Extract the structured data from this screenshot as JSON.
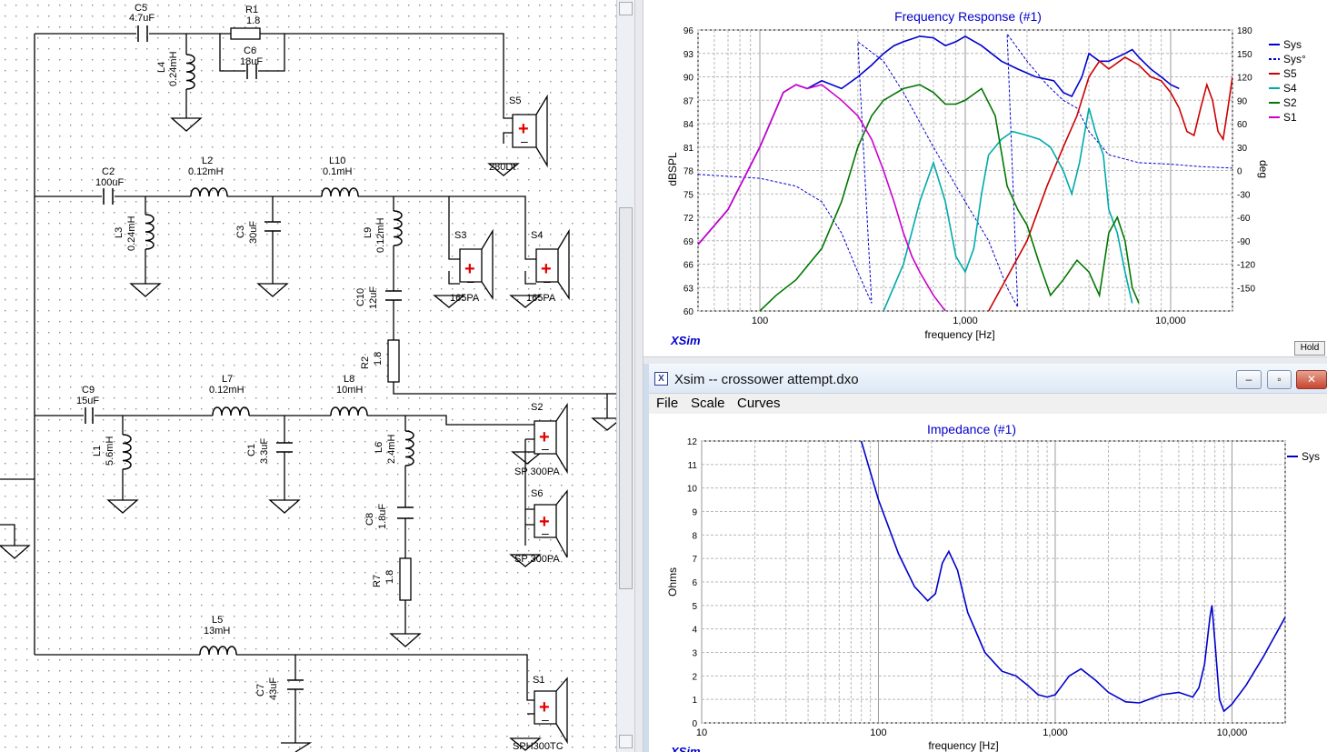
{
  "schematic": {
    "components": {
      "C5": {
        "ref": "C5",
        "value": "4.7uF"
      },
      "R1": {
        "ref": "R1",
        "value": "1.8"
      },
      "C6": {
        "ref": "C6",
        "value": "18uF"
      },
      "L4": {
        "ref": "L4",
        "value": "0.24mH"
      },
      "S5": {
        "ref": "S5",
        "model": "280Dt"
      },
      "C2": {
        "ref": "C2",
        "value": "100uF"
      },
      "L2": {
        "ref": "L2",
        "value": "0.12mH"
      },
      "L10": {
        "ref": "L10",
        "value": "0.1mH"
      },
      "L3": {
        "ref": "L3",
        "value": "0.24mH"
      },
      "C3": {
        "ref": "C3",
        "value": "30uF"
      },
      "L9": {
        "ref": "L9",
        "value": "0.12mH"
      },
      "S3": {
        "ref": "S3",
        "model": "165PA"
      },
      "S4": {
        "ref": "S4",
        "model": "165PA"
      },
      "C10": {
        "ref": "C10",
        "value": "12uF"
      },
      "R2": {
        "ref": "R2",
        "value": "1.8"
      },
      "C9": {
        "ref": "C9",
        "value": "15uF"
      },
      "L7": {
        "ref": "L7",
        "value": "0.12mH"
      },
      "L8": {
        "ref": "L8",
        "value": "10mH"
      },
      "L1": {
        "ref": "L1",
        "value": "5.6mH"
      },
      "C1": {
        "ref": "C1",
        "value": "3.3uF"
      },
      "L6": {
        "ref": "L6",
        "value": "2.4mH"
      },
      "S2": {
        "ref": "S2",
        "model": "SP 300PA"
      },
      "S6": {
        "ref": "S6",
        "model": "SP 300PA"
      },
      "C8": {
        "ref": "C8",
        "value": "1.8uF"
      },
      "R7": {
        "ref": "R7",
        "value": "1.8"
      },
      "L5": {
        "ref": "L5",
        "value": "13mH"
      },
      "C7": {
        "ref": "C7",
        "value": "43uF"
      },
      "S1": {
        "ref": "S1",
        "model": "SPH300TC"
      }
    }
  },
  "frequency_response": {
    "brand": "XSim",
    "hold_label": "Hold",
    "chart_data": {
      "type": "line",
      "title": "Frequency Response (#1)",
      "xlabel": "frequency [Hz]",
      "ylabel": "dBSPL",
      "y2label": "deg",
      "x_scale": "log",
      "xlim": [
        50,
        20000
      ],
      "ylim": [
        60,
        96
      ],
      "y2lim": [
        -180,
        180
      ],
      "x_tick_labels": [
        "100",
        "1,000",
        "10,000"
      ],
      "y_ticks": [
        60,
        63,
        66,
        69,
        72,
        75,
        78,
        81,
        84,
        87,
        90,
        93,
        96
      ],
      "y2_ticks": [
        -150,
        -120,
        -90,
        -60,
        -30,
        0,
        30,
        60,
        90,
        120,
        150,
        180
      ],
      "grid": true,
      "legend_position": "right",
      "series": [
        {
          "name": "Sys",
          "color": "#0000cc",
          "axis": "dB",
          "style": "solid",
          "points": [
            [
              50,
              68.5
            ],
            [
              70,
              73
            ],
            [
              100,
              81
            ],
            [
              130,
              88
            ],
            [
              150,
              89
            ],
            [
              170,
              88.5
            ],
            [
              200,
              89.5
            ],
            [
              250,
              88.5
            ],
            [
              300,
              90
            ],
            [
              350,
              91.5
            ],
            [
              400,
              93
            ],
            [
              450,
              94
            ],
            [
              500,
              94.5
            ],
            [
              600,
              95.2
            ],
            [
              700,
              95
            ],
            [
              800,
              94
            ],
            [
              900,
              94.5
            ],
            [
              1000,
              95.2
            ],
            [
              1200,
              94
            ],
            [
              1500,
              92
            ],
            [
              1800,
              91
            ],
            [
              2200,
              90
            ],
            [
              2700,
              89.5
            ],
            [
              3000,
              88
            ],
            [
              3300,
              87.5
            ],
            [
              3700,
              90
            ],
            [
              4000,
              93
            ],
            [
              4500,
              92
            ],
            [
              5000,
              92
            ],
            [
              6000,
              93
            ],
            [
              6500,
              93.5
            ],
            [
              7000,
              92.5
            ],
            [
              8000,
              91
            ],
            [
              9000,
              90
            ],
            [
              10000,
              89
            ],
            [
              11000,
              88.5
            ]
          ]
        },
        {
          "name": "Sys°",
          "color": "#0000cc",
          "axis": "deg",
          "style": "dashed",
          "points": [
            [
              50,
              -5
            ],
            [
              100,
              -10
            ],
            [
              150,
              -20
            ],
            [
              200,
              -40
            ],
            [
              250,
              -80
            ],
            [
              300,
              -130
            ],
            [
              350,
              -170
            ],
            [
              300,
              165
            ],
            [
              400,
              140
            ],
            [
              500,
              100
            ],
            [
              700,
              30
            ],
            [
              1000,
              -40
            ],
            [
              1300,
              -90
            ],
            [
              1600,
              -150
            ],
            [
              1800,
              -175
            ],
            [
              1600,
              175
            ],
            [
              2000,
              140
            ],
            [
              2500,
              110
            ],
            [
              3000,
              90
            ],
            [
              3500,
              80
            ],
            [
              4000,
              50
            ],
            [
              5000,
              20
            ],
            [
              7000,
              10
            ],
            [
              10000,
              8
            ],
            [
              14000,
              5
            ],
            [
              20000,
              3
            ]
          ]
        },
        {
          "name": "S5",
          "color": "#cc0000",
          "axis": "dB",
          "style": "solid",
          "points": [
            [
              1300,
              60
            ],
            [
              1500,
              63
            ],
            [
              2000,
              69
            ],
            [
              2500,
              76
            ],
            [
              3000,
              81
            ],
            [
              3500,
              85
            ],
            [
              4000,
              90
            ],
            [
              4500,
              92
            ],
            [
              5000,
              91
            ],
            [
              6000,
              92.5
            ],
            [
              7000,
              91.5
            ],
            [
              8000,
              90
            ],
            [
              9000,
              89.5
            ],
            [
              10000,
              88
            ],
            [
              11000,
              86
            ],
            [
              12000,
              83
            ],
            [
              13000,
              82.5
            ],
            [
              14000,
              86
            ],
            [
              15000,
              89
            ],
            [
              16000,
              87
            ],
            [
              17000,
              83
            ],
            [
              18000,
              82
            ],
            [
              19000,
              86
            ],
            [
              20000,
              90
            ]
          ]
        },
        {
          "name": "S4",
          "color": "#00aaaa",
          "axis": "dB",
          "style": "solid",
          "points": [
            [
              400,
              60
            ],
            [
              500,
              66
            ],
            [
              600,
              74
            ],
            [
              700,
              79
            ],
            [
              800,
              74
            ],
            [
              900,
              67
            ],
            [
              1000,
              65
            ],
            [
              1100,
              68
            ],
            [
              1200,
              75
            ],
            [
              1300,
              80
            ],
            [
              1500,
              82
            ],
            [
              1700,
              83
            ],
            [
              2000,
              82.5
            ],
            [
              2300,
              82
            ],
            [
              2600,
              81
            ],
            [
              3000,
              78
            ],
            [
              3300,
              75
            ],
            [
              3600,
              79
            ],
            [
              4000,
              86
            ],
            [
              4300,
              83
            ],
            [
              4700,
              80
            ],
            [
              5000,
              73
            ],
            [
              5500,
              70
            ],
            [
              6000,
              65
            ],
            [
              6500,
              61
            ]
          ]
        },
        {
          "name": "S2",
          "color": "#007700",
          "axis": "dB",
          "style": "solid",
          "points": [
            [
              100,
              60
            ],
            [
              120,
              62
            ],
            [
              150,
              64
            ],
            [
              200,
              68
            ],
            [
              250,
              74
            ],
            [
              300,
              81
            ],
            [
              350,
              85
            ],
            [
              400,
              87
            ],
            [
              500,
              88.5
            ],
            [
              600,
              89
            ],
            [
              700,
              88
            ],
            [
              800,
              86.5
            ],
            [
              900,
              86.5
            ],
            [
              1000,
              87
            ],
            [
              1200,
              88.5
            ],
            [
              1400,
              85
            ],
            [
              1600,
              76
            ],
            [
              1800,
              73
            ],
            [
              2000,
              71
            ],
            [
              2300,
              66
            ],
            [
              2600,
              62
            ],
            [
              3000,
              64
            ],
            [
              3500,
              66.5
            ],
            [
              4000,
              65
            ],
            [
              4500,
              62
            ],
            [
              5000,
              70
            ],
            [
              5500,
              72
            ],
            [
              6000,
              69
            ],
            [
              6500,
              63
            ],
            [
              7000,
              61
            ]
          ]
        },
        {
          "name": "S1",
          "color": "#cc00cc",
          "axis": "dB",
          "style": "solid",
          "points": [
            [
              50,
              68.5
            ],
            [
              70,
              73
            ],
            [
              100,
              81
            ],
            [
              130,
              88
            ],
            [
              150,
              89
            ],
            [
              170,
              88.5
            ],
            [
              200,
              89
            ],
            [
              250,
              87
            ],
            [
              300,
              85
            ],
            [
              350,
              82
            ],
            [
              400,
              78
            ],
            [
              450,
              74
            ],
            [
              500,
              70
            ],
            [
              550,
              67
            ],
            [
              600,
              65
            ],
            [
              700,
              62
            ],
            [
              800,
              60
            ]
          ]
        }
      ]
    }
  },
  "impedance_window": {
    "title": "Xsim -- crossower attempt.dxo",
    "app_icon": "X",
    "menu": [
      "File",
      "Scale",
      "Curves"
    ],
    "brand": "XSim",
    "buttons": {
      "minimize": "‒",
      "maximize": "▫",
      "close": "✕"
    },
    "chart_data": {
      "type": "line",
      "title": "Impedance (#1)",
      "xlabel": "frequency [Hz]",
      "ylabel": "Ohms",
      "x_scale": "log",
      "xlim": [
        10,
        20000
      ],
      "ylim": [
        0,
        12
      ],
      "x_tick_labels": [
        "10",
        "100",
        "1,000",
        "10,000"
      ],
      "y_ticks": [
        0,
        1,
        2,
        3,
        4,
        5,
        6,
        7,
        8,
        9,
        10,
        11,
        12
      ],
      "grid": true,
      "legend_position": "right",
      "series": [
        {
          "name": "Sys",
          "color": "#0000cc",
          "points": [
            [
              80,
              12
            ],
            [
              100,
              9.5
            ],
            [
              130,
              7.2
            ],
            [
              160,
              5.8
            ],
            [
              190,
              5.2
            ],
            [
              210,
              5.5
            ],
            [
              230,
              6.8
            ],
            [
              250,
              7.3
            ],
            [
              280,
              6.5
            ],
            [
              320,
              4.7
            ],
            [
              400,
              3
            ],
            [
              500,
              2.2
            ],
            [
              600,
              2
            ],
            [
              700,
              1.6
            ],
            [
              800,
              1.2
            ],
            [
              900,
              1.1
            ],
            [
              1000,
              1.2
            ],
            [
              1200,
              2
            ],
            [
              1400,
              2.3
            ],
            [
              1700,
              1.8
            ],
            [
              2000,
              1.3
            ],
            [
              2500,
              0.9
            ],
            [
              3000,
              0.85
            ],
            [
              4000,
              1.2
            ],
            [
              5000,
              1.3
            ],
            [
              6000,
              1.1
            ],
            [
              6500,
              1.5
            ],
            [
              7000,
              2.5
            ],
            [
              7500,
              4.5
            ],
            [
              7700,
              5
            ],
            [
              8000,
              3.5
            ],
            [
              8500,
              1
            ],
            [
              9000,
              0.5
            ],
            [
              10000,
              0.8
            ],
            [
              12000,
              1.6
            ],
            [
              15000,
              2.8
            ],
            [
              20000,
              4.5
            ]
          ]
        }
      ]
    }
  }
}
